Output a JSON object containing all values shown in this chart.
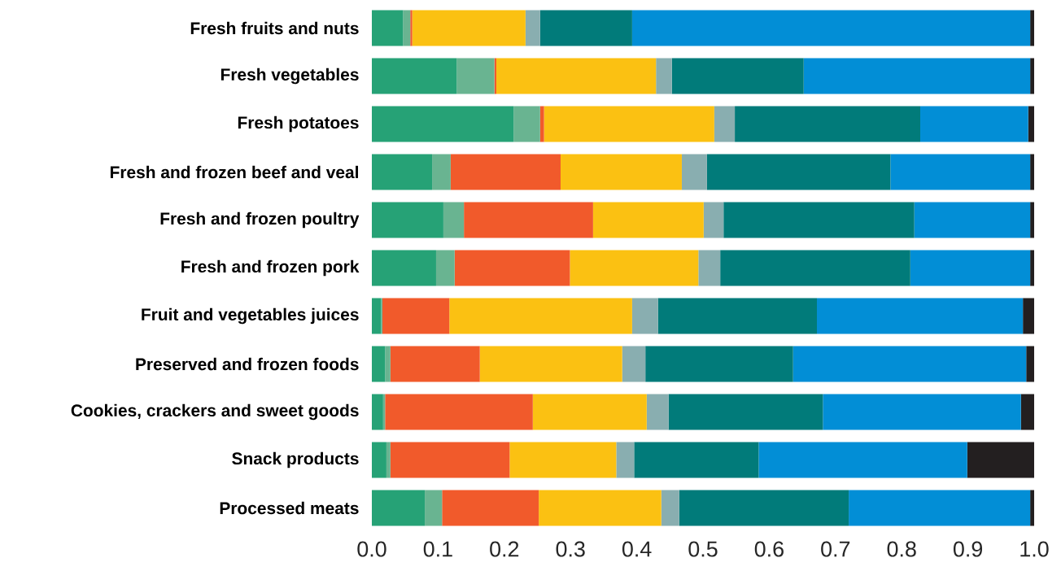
{
  "chart_data": {
    "type": "bar",
    "orientation": "horizontal",
    "stacked": true,
    "categories": [
      "Fresh fruits and nuts",
      "Fresh vegetables",
      "Fresh potatoes",
      "Fresh and frozen beef and veal",
      "Fresh and frozen poultry",
      "Fresh and frozen pork",
      "Fruit and vegetables juices",
      "Preserved and frozen foods",
      "Cookies, crackers and sweet goods",
      "Snack products",
      "Processed meats"
    ],
    "series": [
      {
        "color": "#26a276",
        "values": [
          0.047,
          0.128,
          0.214,
          0.091,
          0.108,
          0.097,
          0.014,
          0.02,
          0.017,
          0.022,
          0.08
        ]
      },
      {
        "color": "#69b491",
        "values": [
          0.011,
          0.057,
          0.04,
          0.028,
          0.031,
          0.028,
          0.002,
          0.008,
          0.003,
          0.006,
          0.026
        ]
      },
      {
        "color": "#f15a2b",
        "values": [
          0.003,
          0.003,
          0.006,
          0.166,
          0.195,
          0.174,
          0.101,
          0.135,
          0.223,
          0.18,
          0.146
        ]
      },
      {
        "color": "#fbc112",
        "values": [
          0.171,
          0.241,
          0.257,
          0.183,
          0.167,
          0.194,
          0.276,
          0.215,
          0.172,
          0.161,
          0.185
        ]
      },
      {
        "color": "#89aeb0",
        "values": [
          0.022,
          0.024,
          0.031,
          0.038,
          0.03,
          0.033,
          0.039,
          0.035,
          0.033,
          0.027,
          0.027
        ]
      },
      {
        "color": "#017b7a",
        "values": [
          0.139,
          0.199,
          0.28,
          0.277,
          0.288,
          0.287,
          0.24,
          0.223,
          0.233,
          0.188,
          0.256
        ]
      },
      {
        "color": "#028ed6",
        "values": [
          0.601,
          0.342,
          0.163,
          0.211,
          0.175,
          0.181,
          0.311,
          0.352,
          0.299,
          0.315,
          0.274
        ]
      },
      {
        "color": "#231f20",
        "values": [
          0.006,
          0.006,
          0.009,
          0.006,
          0.006,
          0.006,
          0.017,
          0.012,
          0.02,
          0.101,
          0.006
        ]
      }
    ],
    "xlim": [
      0,
      1
    ],
    "xticks": [
      {
        "value": 0,
        "label": "0.0"
      },
      {
        "value": 0.1,
        "label": "0.1"
      },
      {
        "value": 0.2,
        "label": "0.2"
      },
      {
        "value": 0.3,
        "label": "0.3"
      },
      {
        "value": 0.4,
        "label": "0.4"
      },
      {
        "value": 0.5,
        "label": "0.5"
      },
      {
        "value": 0.6,
        "label": "0.6"
      },
      {
        "value": 0.7,
        "label": "0.7"
      },
      {
        "value": 0.8,
        "label": "0.8"
      },
      {
        "value": 0.9,
        "label": "0.9"
      },
      {
        "value": 1,
        "label": "1.0"
      }
    ]
  }
}
